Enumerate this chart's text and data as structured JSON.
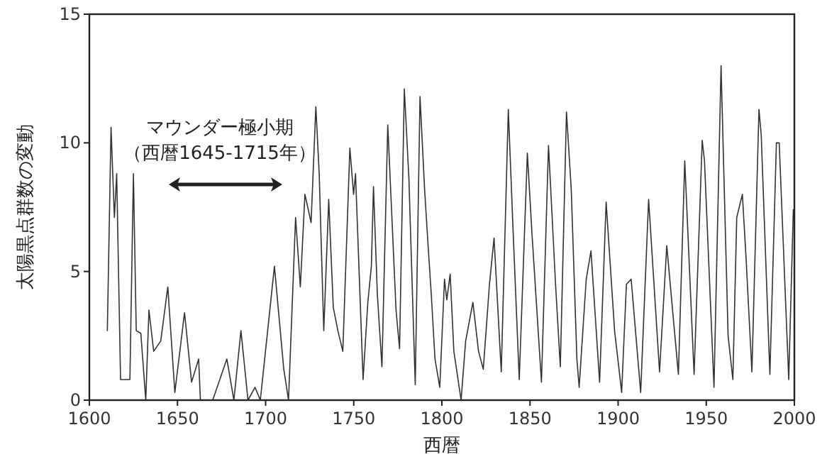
{
  "chart_data": {
    "type": "line",
    "xlabel": "西暦",
    "ylabel": "太陽黒点群数の変動",
    "annotations": [
      "マウンダー極小期",
      "（西暦1645-1715年）"
    ],
    "xlim": [
      1600,
      2000
    ],
    "xticks": [
      1600,
      1650,
      1700,
      1750,
      1800,
      1850,
      1900,
      1950,
      2000
    ],
    "ylim": [
      0,
      15
    ],
    "yticks": [
      0,
      5,
      10,
      15
    ],
    "grid": false,
    "marker": "none",
    "line_style": "solid",
    "series": [
      {
        "color": "#333333",
        "x": [
          1610.2,
          1612.3,
          1614.2,
          1615.5,
          1617.7,
          1623,
          1625,
          1626.6,
          1629.2,
          1632,
          1633.8,
          1636.5,
          1640.5,
          1644.5,
          1648.5,
          1654,
          1658,
          1662,
          1663,
          1670,
          1674,
          1678,
          1682,
          1686,
          1690,
          1694,
          1697,
          1705,
          1710.3,
          1713,
          1717,
          1719.7,
          1722.3,
          1725.8,
          1728.5,
          1730.4,
          1733,
          1735.8,
          1738.4,
          1741,
          1743.8,
          1747.8,
          1749.9,
          1751,
          1755.3,
          1758,
          1760,
          1761.2,
          1763.4,
          1766,
          1769.3,
          1774,
          1776,
          1778.7,
          1781.3,
          1784.9,
          1787.6,
          1790.2,
          1792.1,
          1794,
          1796.1,
          1798.8,
          1801.5,
          1802.8,
          1804.7,
          1806.8,
          1810.9,
          1813.5,
          1817.6,
          1820.8,
          1823.5,
          1827,
          1829.6,
          1833.7,
          1837.7,
          1840.4,
          1843.9,
          1848.5,
          1851.1,
          1856.5,
          1860.5,
          1864.5,
          1867.2,
          1870.7,
          1873.4,
          1876.6,
          1877.9,
          1881.9,
          1884.6,
          1889.5,
          1893.2,
          1898,
          1902,
          1904.7,
          1907.4,
          1912.8,
          1917.3,
          1923.5,
          1927.6,
          1934.2,
          1937.8,
          1943.1,
          1947.7,
          1949,
          1954.4,
          1958.4,
          1962.4,
          1965.1,
          1967.3,
          1970.5,
          1972.6,
          1975.9,
          1979.9,
          1981.2,
          1986.1,
          1989.8,
          1991.4,
          1996.8,
          1999.4
        ],
        "values": [
          2.7,
          10.6,
          7.1,
          8.8,
          0.8,
          0.8,
          8.8,
          2.7,
          2.6,
          0,
          3.5,
          1.9,
          2.3,
          4.4,
          0.3,
          3.4,
          0.7,
          1.6,
          0,
          0,
          0.8,
          1.6,
          0,
          2.7,
          0,
          0.5,
          0,
          5.2,
          1.2,
          0,
          7.1,
          4.4,
          8,
          6.9,
          11.4,
          8.8,
          2.7,
          7.8,
          3.6,
          2.7,
          1.9,
          9.8,
          8,
          8.8,
          0.8,
          3.8,
          5.2,
          8.3,
          4.1,
          1.3,
          10.7,
          3.5,
          2,
          12.1,
          8.6,
          0.6,
          11.8,
          8.2,
          6.1,
          4.1,
          1.6,
          0.5,
          4.7,
          3.9,
          4.9,
          1.9,
          0,
          2.3,
          3.8,
          1.9,
          1.2,
          4.5,
          6.3,
          1.1,
          11.3,
          6.6,
          0.8,
          9.6,
          6.5,
          0.7,
          9.9,
          4.5,
          1.3,
          11.2,
          8.2,
          1.6,
          0.5,
          4.7,
          5.8,
          0.7,
          7.7,
          2.7,
          0.3,
          4.5,
          4.7,
          0.3,
          7.8,
          1.1,
          6,
          1,
          9.3,
          1,
          10.1,
          9.3,
          0.5,
          13,
          2.5,
          0.8,
          7.1,
          8,
          5.5,
          1.1,
          11.3,
          10.3,
          1,
          10,
          10,
          0.8,
          7.4
        ]
      }
    ]
  }
}
